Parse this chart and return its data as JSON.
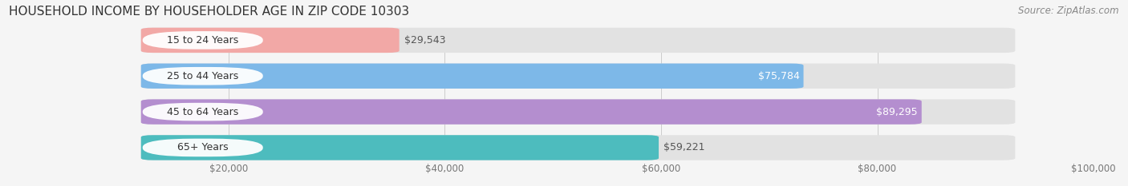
{
  "title": "HOUSEHOLD INCOME BY HOUSEHOLDER AGE IN ZIP CODE 10303",
  "source": "Source: ZipAtlas.com",
  "categories": [
    "15 to 24 Years",
    "25 to 44 Years",
    "45 to 64 Years",
    "65+ Years"
  ],
  "values": [
    29543,
    75784,
    89295,
    59221
  ],
  "bar_colors": [
    "#f2a8a6",
    "#7db8e8",
    "#b48ecf",
    "#4dbcbe"
  ],
  "value_labels": [
    "$29,543",
    "$75,784",
    "$89,295",
    "$59,221"
  ],
  "value_inside": [
    false,
    true,
    true,
    false
  ],
  "xlim": [
    0,
    100000
  ],
  "xticks": [
    0,
    20000,
    40000,
    60000,
    80000,
    100000
  ],
  "xtick_labels": [
    "",
    "$20,000",
    "$40,000",
    "$60,000",
    "$80,000",
    "$100,000"
  ],
  "bg_color": "#f5f5f5",
  "bar_bg_color": "#e2e2e2",
  "title_fontsize": 11,
  "source_fontsize": 8.5,
  "figsize": [
    14.06,
    2.33
  ],
  "dpi": 100
}
